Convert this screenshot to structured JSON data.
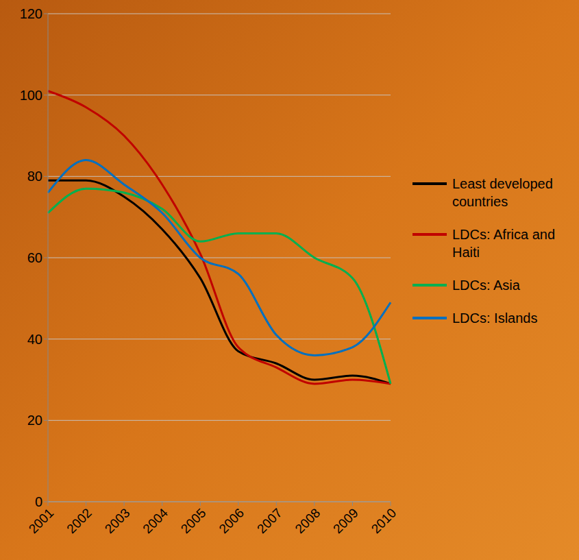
{
  "chart_data": {
    "type": "line",
    "categories": [
      "2001",
      "2002",
      "2003",
      "2004",
      "2005",
      "2006",
      "2007",
      "2008",
      "2009",
      "2010"
    ],
    "series": [
      {
        "name": "Least developed countries",
        "color": "#000000",
        "values": [
          79,
          79,
          75,
          67,
          55,
          37,
          34,
          30,
          31,
          29
        ]
      },
      {
        "name": "LDCs: Africa and Haiti",
        "color": "#c00000",
        "values": [
          101,
          97,
          90,
          78,
          61,
          38,
          33,
          29,
          30,
          29
        ]
      },
      {
        "name": "LDCs: Asia",
        "color": "#00b050",
        "values": [
          71,
          77,
          76,
          72,
          64,
          66,
          66,
          60,
          55,
          29
        ]
      },
      {
        "name": "LDCs: Islands",
        "color": "#0070c0",
        "values": [
          76,
          84,
          78,
          71,
          60,
          56,
          41,
          36,
          38,
          49
        ]
      }
    ],
    "ylim": [
      0,
      120
    ],
    "yticks": [
      0,
      20,
      40,
      60,
      80,
      100,
      120
    ],
    "grid": true,
    "legend": "right"
  }
}
